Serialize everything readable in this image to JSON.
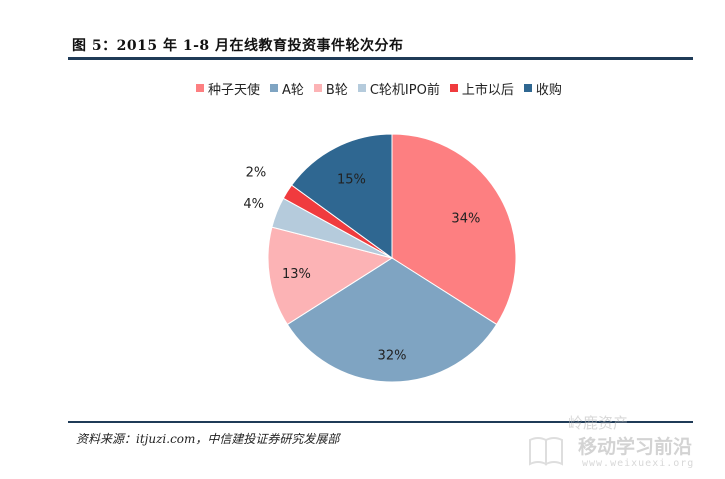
{
  "figure": {
    "title": "图 5：2015 年 1-8 月在线教育投资事件轮次分布",
    "source": "资料来源：itjuzi.com，中信建投证券研究发展部"
  },
  "watermark": {
    "line1": "岭鹿资产",
    "line2": "移动学习前沿",
    "line3": "www.weixuexi.org",
    "logo_icon": "book-icon"
  },
  "chart_data": {
    "type": "pie",
    "title": "",
    "legend_position": "top",
    "start_angle_deg": 0,
    "direction": "clockwise",
    "slices": [
      {
        "label": "种子天使",
        "value": 34,
        "display": "34%",
        "color": "#fd7f81"
      },
      {
        "label": "A轮",
        "value": 32,
        "display": "32%",
        "color": "#7fa4c2"
      },
      {
        "label": "B轮",
        "value": 13,
        "display": "13%",
        "color": "#fcb3b5"
      },
      {
        "label": "C轮机IPO前",
        "value": 4,
        "display": "4%",
        "color": "#b5cbdc"
      },
      {
        "label": "上市以后",
        "value": 2,
        "display": "2%",
        "color": "#f03b3e"
      },
      {
        "label": "收购",
        "value": 15,
        "display": "15%",
        "color": "#2f6791"
      }
    ]
  }
}
